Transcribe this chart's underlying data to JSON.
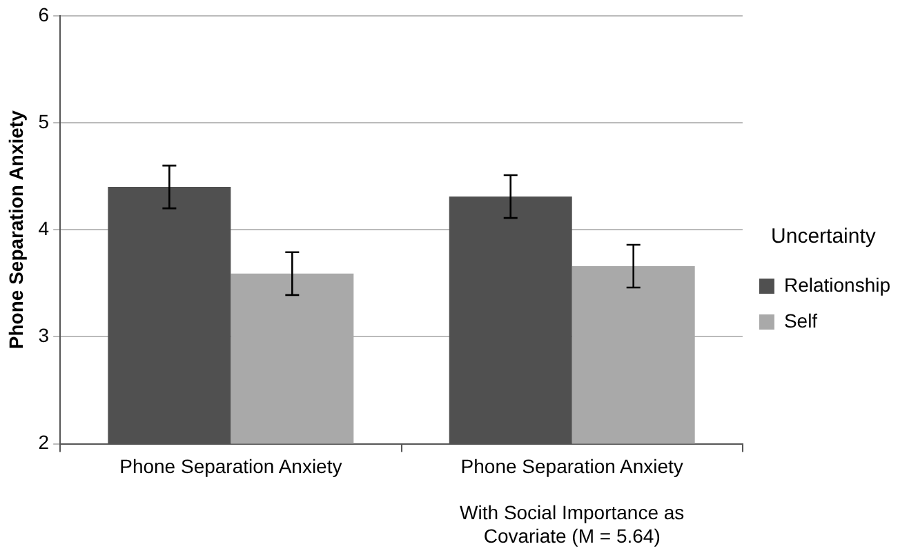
{
  "chart_data": {
    "type": "bar",
    "ylabel": "Phone Separation Anxiety",
    "legend_title": "Uncertainty",
    "categories": [
      "Phone Separation Anxiety",
      "Phone Separation Anxiety\n\nWith Social Importance as\nCovariate (M = 5.64)"
    ],
    "series": [
      {
        "name": "Relationship",
        "color": "#505050",
        "values": [
          4.4,
          4.31
        ],
        "errors": [
          0.2,
          0.2
        ]
      },
      {
        "name": "Self",
        "color": "#a9a9a9",
        "values": [
          3.59,
          3.66
        ],
        "errors": [
          0.2,
          0.2
        ]
      }
    ],
    "ylim": [
      2,
      6
    ],
    "yticks": [
      2,
      3,
      4,
      5,
      6
    ],
    "grid": "y",
    "legend": "right"
  }
}
